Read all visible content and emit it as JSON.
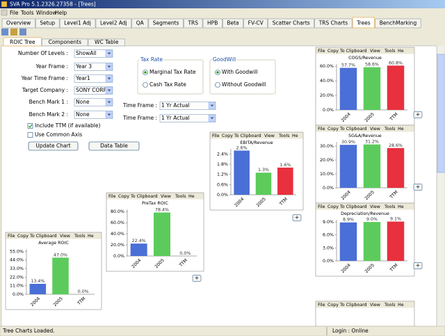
{
  "window_title": "SVA Pro 5.1.2326.27358 - [Trees]",
  "menu": [
    "File",
    "Tools",
    "Window",
    "Help"
  ],
  "tabs": [
    "Overview",
    "Setup",
    "Level1 Adj",
    "Level2 Adj",
    "QA",
    "Segments",
    "TRS",
    "HPB",
    "Beta",
    "FV-CV",
    "Scatter Charts",
    "TRS Charts",
    "Trees",
    "BenchMarking"
  ],
  "active_tab": 12,
  "subtabs": [
    "ROIC Tree",
    "Components",
    "WC Table"
  ],
  "active_subtab": 0,
  "fields": [
    {
      "label": "Number Of Levels :",
      "value": "ShowAll"
    },
    {
      "label": "Year Frame :",
      "value": "Year 3"
    },
    {
      "label": "Year Time Frame :",
      "value": "Year1"
    },
    {
      "label": "Target Company :",
      "value": "SONY CORP"
    },
    {
      "label": "Bench Mark 1 :",
      "value": "None"
    },
    {
      "label": "Bench Mark 2 :",
      "value": "None"
    }
  ],
  "time_frames": [
    {
      "label": "Time Frame :",
      "value": "1 Yr Actual"
    },
    {
      "label": "Time Frame :",
      "value": "1 Yr Actual"
    }
  ],
  "tax_rate": {
    "title": "Tax Rate",
    "options": [
      "Marginal Tax Rate",
      "Cash Tax Rate"
    ],
    "selected": 0
  },
  "goodwill": {
    "title": "GoodWill",
    "options": [
      "With Goodwill",
      "Without Goodwill"
    ],
    "selected": 0
  },
  "checkboxes": [
    {
      "label": "Include TTM (if available)",
      "checked": true
    },
    {
      "label": "Use Common Axis",
      "checked": false
    }
  ],
  "buttons": [
    "Update Chart",
    "Data Table"
  ],
  "chart_menu": [
    "File",
    "Copy To Clipboard",
    "View",
    "Tools",
    "He"
  ],
  "categories": [
    "2004",
    "2005",
    "TTM"
  ],
  "bar_colors": [
    "#4a6fd6",
    "#5ccb5c",
    "#e8303e"
  ],
  "expand_button": "+",
  "charts": [
    {
      "title": "Average ROIC",
      "values": [
        13.4,
        47,
        0
      ],
      "value_labels": [
        "13.4%",
        "47.0%",
        "0.0%"
      ],
      "ylim": [
        0,
        58
      ],
      "yticks": [
        {
          "value": 0,
          "label": "0.0%"
        },
        {
          "value": 11,
          "label": "11.0%"
        },
        {
          "value": 22,
          "label": "22.0%"
        },
        {
          "value": 33,
          "label": "33.0%"
        },
        {
          "value": 44,
          "label": "44.0%"
        },
        {
          "value": 55,
          "label": "55.0%"
        }
      ]
    },
    {
      "title": "PreTax ROIC",
      "values": [
        22.4,
        78.4,
        0
      ],
      "value_labels": [
        "22.4%",
        "78.4%",
        "0.0%"
      ],
      "ylim": [
        0,
        84
      ],
      "yticks": [
        {
          "value": 0,
          "label": "0.0%"
        },
        {
          "value": 20,
          "label": "20.0%"
        },
        {
          "value": 40,
          "label": "40.0%"
        },
        {
          "value": 60,
          "label": "60.0%"
        },
        {
          "value": 80,
          "label": "80.0%"
        }
      ]
    },
    {
      "title": "EBITA/Revenue",
      "values": [
        2.6,
        1.3,
        1.6
      ],
      "value_labels": [
        "2.6%",
        "1.3%",
        "1.6%"
      ],
      "ylim": [
        0,
        2.7
      ],
      "yticks": [
        {
          "value": 0,
          "label": "0.0%"
        },
        {
          "value": 0.6,
          "label": "0.6%"
        },
        {
          "value": 1.2,
          "label": "1.2%"
        },
        {
          "value": 1.8,
          "label": "1.8%"
        },
        {
          "value": 2.4,
          "label": "2.4%"
        }
      ]
    },
    {
      "title": "COGS/Revenue",
      "values": [
        57.7,
        58.6,
        60.8
      ],
      "value_labels": [
        "57.7%",
        "58.6%",
        "60.8%"
      ],
      "ylim": [
        0,
        63
      ],
      "yticks": [
        {
          "value": 0,
          "label": "0.0%"
        },
        {
          "value": 20,
          "label": "20.0%"
        },
        {
          "value": 40,
          "label": "40.0%"
        },
        {
          "value": 60,
          "label": "60.0%"
        }
      ]
    },
    {
      "title": "SG&A/Revenue",
      "values": [
        30.9,
        31.2,
        28.6
      ],
      "value_labels": [
        "30.9%",
        "31.2%",
        "28.6%"
      ],
      "ylim": [
        0,
        33
      ],
      "yticks": [
        {
          "value": 0,
          "label": "0.0%"
        },
        {
          "value": 10,
          "label": "10.0%"
        },
        {
          "value": 20,
          "label": "20.0%"
        },
        {
          "value": 30,
          "label": "30.0%"
        }
      ]
    },
    {
      "title": "Depreciation/Revenue",
      "values": [
        8.9,
        9,
        9.1
      ],
      "value_labels": [
        "8.9%",
        "9.0%",
        "9.1%"
      ],
      "ylim": [
        0,
        9.5
      ],
      "yticks": [
        {
          "value": 0,
          "label": "0.0%"
        },
        {
          "value": 3,
          "label": "3.0%"
        },
        {
          "value": 6,
          "label": "6.0%"
        },
        {
          "value": 9,
          "label": "9.0%"
        }
      ]
    }
  ],
  "status": {
    "message": "Tree Charts Loaded.",
    "login": "Login : Online"
  }
}
